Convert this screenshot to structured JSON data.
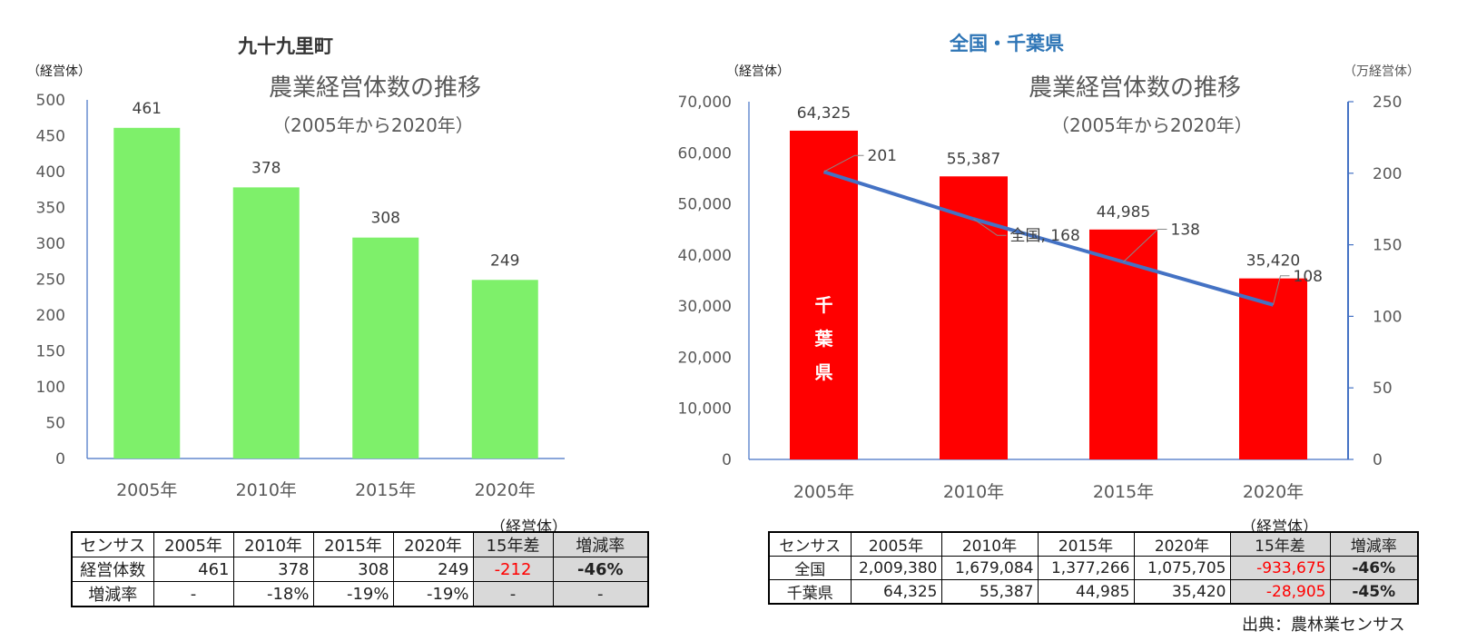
{
  "left": {
    "region_title": "九十九里町",
    "unit_left": "（経営体）",
    "table_unit": "（経営体）",
    "table": {
      "header": [
        "センサス",
        "2005年",
        "2010年",
        "2015年",
        "2020年",
        "15年差",
        "増減率"
      ],
      "rows": [
        [
          "経営体数",
          "461",
          "378",
          "308",
          "249",
          "-212",
          "-46%"
        ],
        [
          "増減率",
          "-",
          "-18%",
          "-19%",
          "-19%",
          "-",
          "-"
        ]
      ]
    }
  },
  "right": {
    "region_title": "全国・千葉県",
    "unit_left": "（経営体）",
    "unit_right": "（万経営体）",
    "bar_inner_label": [
      "千",
      "葉",
      "県"
    ],
    "table_unit": "（経営体）",
    "table": {
      "header": [
        "センサス",
        "2005年",
        "2010年",
        "2015年",
        "2020年",
        "15年差",
        "増減率"
      ],
      "rows": [
        [
          "全国",
          "2,009,380",
          "1,679,084",
          "1,377,266",
          "1,075,705",
          "-933,675",
          "-46%"
        ],
        [
          "千葉県",
          "64,325",
          "55,387",
          "44,985",
          "35,420",
          "-28,905",
          "-45%"
        ]
      ]
    },
    "source": "出典：農林業センサス"
  },
  "chart_data": [
    {
      "type": "bar",
      "title": "農業経営体数の推移",
      "subtitle": "（2005年から2020年）",
      "ylabel": "（経営体）",
      "categories": [
        "2005年",
        "2010年",
        "2015年",
        "2020年"
      ],
      "values": [
        461,
        378,
        308,
        249
      ],
      "data_labels": [
        "461",
        "378",
        "308",
        "249"
      ],
      "ylim": [
        0,
        500
      ],
      "yticks": [
        "0",
        "50",
        "100",
        "150",
        "200",
        "250",
        "300",
        "350",
        "400",
        "450",
        "500"
      ],
      "color": "#7ef06a",
      "grid": false,
      "legend": "none"
    },
    {
      "type": "bar+line",
      "title": "農業経営体数の推移",
      "subtitle": "（2005年から2020年）",
      "ylabel": "（経営体）",
      "y2label": "（万経営体）",
      "categories": [
        "2005年",
        "2010年",
        "2015年",
        "2020年"
      ],
      "series": [
        {
          "name": "千葉県",
          "type": "bar",
          "axis": "left",
          "values": [
            64325,
            55387,
            44985,
            35420
          ],
          "data_labels": [
            "64,325",
            "55,387",
            "44,985",
            "35,420"
          ],
          "color": "#ff0000"
        },
        {
          "name": "全国",
          "type": "line",
          "axis": "right",
          "values": [
            201,
            168,
            138,
            108
          ],
          "data_labels": [
            "201",
            "全国, 168",
            "138",
            "108"
          ],
          "color": "#4472c4"
        }
      ],
      "ylim": [
        0,
        70000
      ],
      "yticks": [
        "0",
        "10,000",
        "20,000",
        "30,000",
        "40,000",
        "50,000",
        "60,000",
        "70,000"
      ],
      "y2lim": [
        0,
        250
      ],
      "y2ticks": [
        "0",
        "50",
        "100",
        "150",
        "200",
        "250"
      ],
      "grid": false,
      "legend": "none"
    }
  ]
}
